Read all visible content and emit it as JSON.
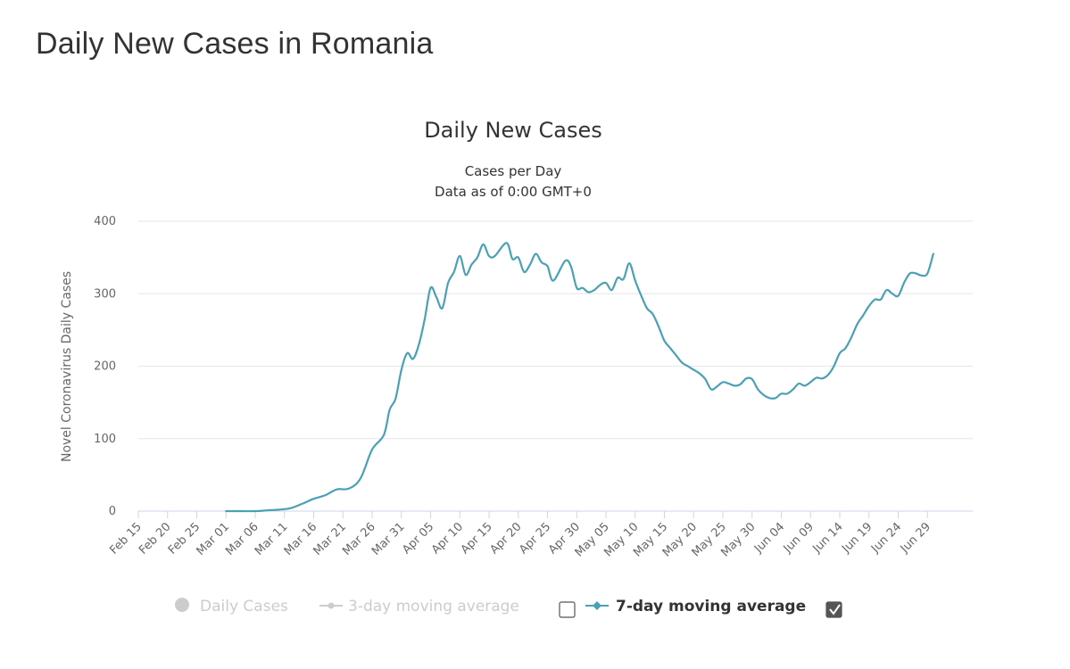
{
  "page": {
    "title": "Daily New Cases in Romania"
  },
  "colors": {
    "series_line": "#4aa0b5",
    "legend_dim": "#cccccc",
    "grid": "#e6e6e6"
  },
  "legend": {
    "items": [
      {
        "label": "Daily Cases",
        "state": "hidden",
        "icon": "circle-marker-icon"
      },
      {
        "label": "3-day moving average",
        "state": "hidden",
        "icon": "line-marker-icon",
        "checkbox_checked": false
      },
      {
        "label": "7-day moving average",
        "state": "visible",
        "icon": "line-marker-icon",
        "checkbox_checked": true
      }
    ]
  },
  "chart_data": {
    "type": "line",
    "title": "Daily New Cases",
    "subtitle": [
      "Cases per Day",
      "Data as of 0:00 GMT+0"
    ],
    "ylabel": "Novel Coronavirus Daily Cases",
    "xlabel": "",
    "ylim": [
      0,
      400
    ],
    "yticks": [
      0,
      100,
      200,
      300,
      400
    ],
    "grid": true,
    "legend_position": "bottom",
    "x_tick_labels": [
      "Feb 15",
      "Feb 20",
      "Feb 25",
      "Mar 01",
      "Mar 06",
      "Mar 11",
      "Mar 16",
      "Mar 21",
      "Mar 26",
      "Mar 31",
      "Apr 05",
      "Apr 10",
      "Apr 15",
      "Apr 20",
      "Apr 25",
      "Apr 30",
      "May 05",
      "May 10",
      "May 15",
      "May 20",
      "May 25",
      "May 30",
      "Jun 04",
      "Jun 09",
      "Jun 14",
      "Jun 19",
      "Jun 24",
      "Jun 29"
    ],
    "series": [
      {
        "name": "7-day moving average",
        "points": [
          [
            "Mar 01",
            0
          ],
          [
            "Mar 03",
            0
          ],
          [
            "Mar 06",
            0
          ],
          [
            "Mar 08",
            1
          ],
          [
            "Mar 10",
            2
          ],
          [
            "Mar 12",
            4
          ],
          [
            "Mar 14",
            10
          ],
          [
            "Mar 16",
            17
          ],
          [
            "Mar 18",
            22
          ],
          [
            "Mar 20",
            30
          ],
          [
            "Mar 22",
            31
          ],
          [
            "Mar 24",
            45
          ],
          [
            "Mar 26",
            85
          ],
          [
            "Mar 28",
            105
          ],
          [
            "Mar 29",
            140
          ],
          [
            "Mar 30",
            155
          ],
          [
            "Mar 31",
            195
          ],
          [
            "Apr 01",
            218
          ],
          [
            "Apr 02",
            210
          ],
          [
            "Apr 03",
            230
          ],
          [
            "Apr 04",
            265
          ],
          [
            "Apr 05",
            308
          ],
          [
            "Apr 06",
            295
          ],
          [
            "Apr 07",
            280
          ],
          [
            "Apr 08",
            315
          ],
          [
            "Apr 09",
            330
          ],
          [
            "Apr 10",
            352
          ],
          [
            "Apr 11",
            326
          ],
          [
            "Apr 12",
            340
          ],
          [
            "Apr 13",
            350
          ],
          [
            "Apr 14",
            368
          ],
          [
            "Apr 15",
            352
          ],
          [
            "Apr 16",
            352
          ],
          [
            "Apr 18",
            370
          ],
          [
            "Apr 19",
            348
          ],
          [
            "Apr 20",
            350
          ],
          [
            "Apr 21",
            330
          ],
          [
            "Apr 22",
            340
          ],
          [
            "Apr 23",
            355
          ],
          [
            "Apr 24",
            343
          ],
          [
            "Apr 25",
            338
          ],
          [
            "Apr 26",
            318
          ],
          [
            "Apr 28",
            345
          ],
          [
            "Apr 29",
            338
          ],
          [
            "Apr 30",
            308
          ],
          [
            "May 01",
            308
          ],
          [
            "May 02",
            302
          ],
          [
            "May 03",
            305
          ],
          [
            "May 04",
            312
          ],
          [
            "May 05",
            315
          ],
          [
            "May 06",
            305
          ],
          [
            "May 07",
            322
          ],
          [
            "May 08",
            320
          ],
          [
            "May 09",
            342
          ],
          [
            "May 10",
            318
          ],
          [
            "May 11",
            298
          ],
          [
            "May 12",
            280
          ],
          [
            "May 13",
            272
          ],
          [
            "May 14",
            255
          ],
          [
            "May 15",
            235
          ],
          [
            "May 16",
            225
          ],
          [
            "May 17",
            215
          ],
          [
            "May 18",
            205
          ],
          [
            "May 19",
            200
          ],
          [
            "May 20",
            195
          ],
          [
            "May 21",
            190
          ],
          [
            "May 22",
            182
          ],
          [
            "May 23",
            168
          ],
          [
            "May 24",
            172
          ],
          [
            "May 25",
            178
          ],
          [
            "May 26",
            176
          ],
          [
            "May 27",
            173
          ],
          [
            "May 28",
            175
          ],
          [
            "May 29",
            183
          ],
          [
            "May 30",
            182
          ],
          [
            "May 31",
            168
          ],
          [
            "Jun 01",
            160
          ],
          [
            "Jun 02",
            156
          ],
          [
            "Jun 03",
            156
          ],
          [
            "Jun 04",
            162
          ],
          [
            "Jun 05",
            162
          ],
          [
            "Jun 06",
            168
          ],
          [
            "Jun 07",
            176
          ],
          [
            "Jun 08",
            173
          ],
          [
            "Jun 09",
            178
          ],
          [
            "Jun 10",
            184
          ],
          [
            "Jun 11",
            183
          ],
          [
            "Jun 12",
            188
          ],
          [
            "Jun 13",
            200
          ],
          [
            "Jun 14",
            218
          ],
          [
            "Jun 15",
            225
          ],
          [
            "Jun 16",
            240
          ],
          [
            "Jun 17",
            258
          ],
          [
            "Jun 18",
            270
          ],
          [
            "Jun 19",
            283
          ],
          [
            "Jun 20",
            292
          ],
          [
            "Jun 21",
            292
          ],
          [
            "Jun 22",
            305
          ],
          [
            "Jun 23",
            300
          ],
          [
            "Jun 24",
            297
          ],
          [
            "Jun 25",
            315
          ],
          [
            "Jun 26",
            328
          ],
          [
            "Jun 27",
            328
          ],
          [
            "Jun 28",
            325
          ],
          [
            "Jun 29",
            328
          ],
          [
            "Jun 30",
            355
          ]
        ]
      }
    ]
  }
}
